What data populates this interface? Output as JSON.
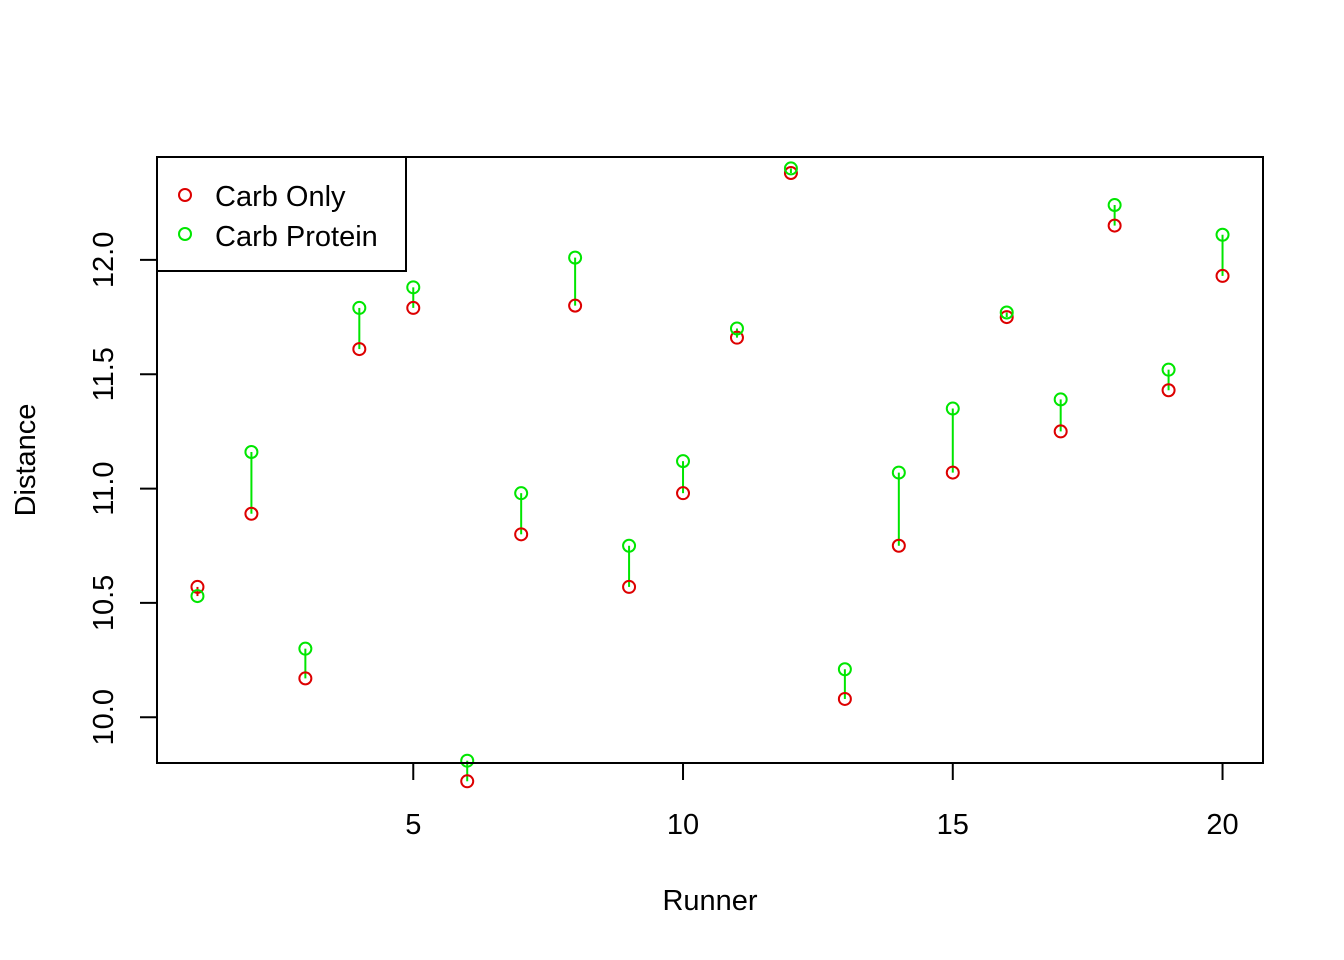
{
  "chart_data": {
    "type": "scatter",
    "title": "",
    "xlabel": "Runner",
    "ylabel": "Distance",
    "xlim": [
      0.25,
      20.75
    ],
    "ylim": [
      9.8,
      12.45
    ],
    "x_ticks": [
      5,
      10,
      15,
      20
    ],
    "y_ticks": [
      10.0,
      10.5,
      11.0,
      11.5,
      12.0
    ],
    "x_tick_labels": [
      "5",
      "10",
      "15",
      "20"
    ],
    "y_tick_labels": [
      "10.0",
      "10.5",
      "11.0",
      "11.5",
      "12.0"
    ],
    "grid": false,
    "legend_position": "top-left",
    "x": [
      1,
      2,
      3,
      4,
      5,
      6,
      7,
      8,
      9,
      10,
      11,
      12,
      13,
      14,
      15,
      16,
      17,
      18,
      19,
      20
    ],
    "series": [
      {
        "name": "Carb Only",
        "color": "#dd0000",
        "marker": "open-circle",
        "values": [
          10.57,
          10.89,
          10.17,
          11.61,
          11.79,
          9.72,
          10.8,
          11.8,
          10.57,
          10.98,
          11.66,
          12.38,
          10.08,
          10.75,
          11.07,
          11.75,
          11.25,
          12.15,
          11.43,
          11.93
        ]
      },
      {
        "name": "Carb Protein",
        "color": "#00e600",
        "marker": "open-circle",
        "values": [
          10.53,
          11.16,
          10.3,
          11.79,
          11.88,
          9.81,
          10.98,
          12.01,
          10.75,
          11.12,
          11.7,
          12.4,
          10.21,
          11.07,
          11.35,
          11.77,
          11.39,
          12.24,
          11.52,
          12.11
        ]
      }
    ],
    "connector_color": "#00e600",
    "connector_color_when_decrease": "#dd0000"
  }
}
